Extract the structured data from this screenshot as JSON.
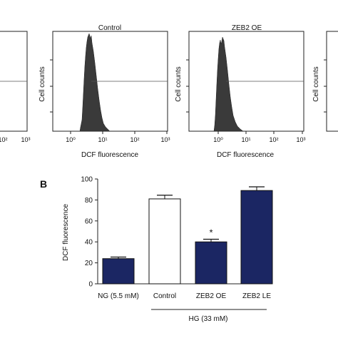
{
  "colors": {
    "navy": "#1b2663",
    "hist": "#3a3a3a",
    "text": "#111111"
  },
  "panel_a": {
    "plots": [
      {
        "title": "",
        "ylabel": "",
        "xlabel": "",
        "ticks": [
          "10²",
          "10³"
        ]
      },
      {
        "title": "Control",
        "ylabel": "Cell counts",
        "xlabel": "DCF fluorescence",
        "ticks": [
          "10⁰",
          "10¹",
          "10²",
          "10³"
        ]
      },
      {
        "title": "ZEB2 OE",
        "ylabel": "Cell counts",
        "xlabel": "DCF fluorescence",
        "ticks": [
          "10⁰",
          "10¹",
          "10²",
          "10³"
        ]
      },
      {
        "title": "",
        "ylabel": "Cell counts",
        "xlabel": "",
        "ticks": []
      }
    ]
  },
  "chart_data": {
    "type": "bar",
    "panel_label": "B",
    "categories": [
      "NG (5.5 mM)",
      "Control",
      "ZEB2 OE",
      "ZEB2 LE"
    ],
    "values": [
      24,
      81,
      40,
      89
    ],
    "errors": [
      1.5,
      3.5,
      2.5,
      3.5
    ],
    "fills": [
      "#1b2663",
      "#ffffff",
      "#1b2663",
      "#1b2663"
    ],
    "significance": [
      "",
      "",
      "*",
      ""
    ],
    "ylabel": "DCF fluorescence",
    "ylim": [
      0,
      100
    ],
    "yticks": [
      0,
      20,
      40,
      60,
      80,
      100
    ],
    "group_label": "HG (33 mM)"
  }
}
